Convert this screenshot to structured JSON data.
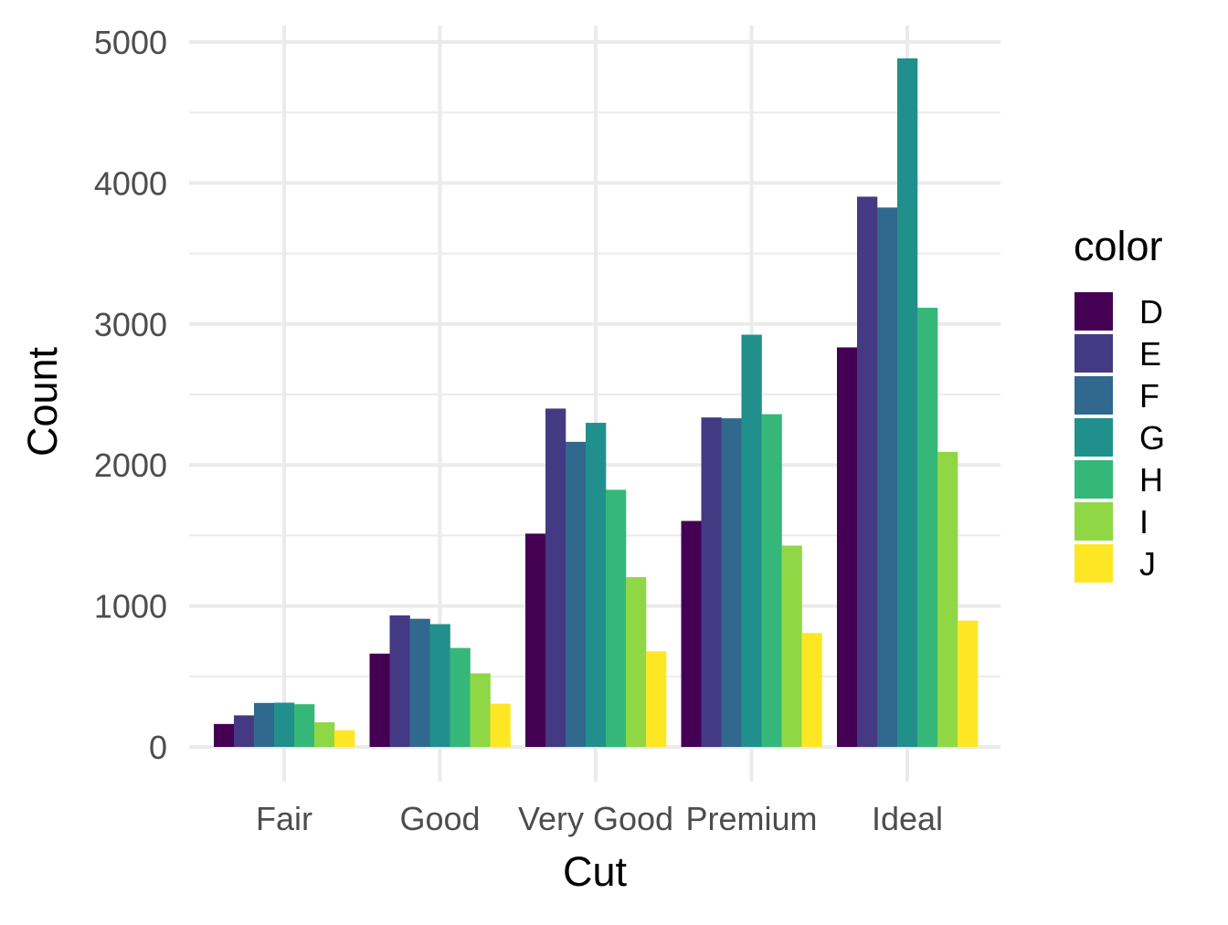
{
  "chart_data": {
    "type": "bar",
    "title": "",
    "xlabel": "Cut",
    "ylabel": "Count",
    "categories": [
      "Fair",
      "Good",
      "Very Good",
      "Premium",
      "Ideal"
    ],
    "ylim": [
      0,
      5000
    ],
    "y_ticks": [
      "0",
      "1000",
      "2000",
      "3000",
      "4000",
      "5000"
    ],
    "grid": true,
    "legend": {
      "title": "color",
      "position": "right"
    },
    "series": [
      {
        "name": "D",
        "color": "#440154",
        "values": [
          163,
          662,
          1513,
          1603,
          2834
        ]
      },
      {
        "name": "E",
        "color": "#443A83",
        "values": [
          224,
          933,
          2400,
          2337,
          3903
        ]
      },
      {
        "name": "F",
        "color": "#31688E",
        "values": [
          312,
          909,
          2164,
          2331,
          3826
        ]
      },
      {
        "name": "G",
        "color": "#21908C",
        "values": [
          314,
          871,
          2299,
          2924,
          4884
        ]
      },
      {
        "name": "H",
        "color": "#35B779",
        "values": [
          303,
          702,
          1824,
          2360,
          3115
        ]
      },
      {
        "name": "I",
        "color": "#8FD744",
        "values": [
          175,
          522,
          1204,
          1428,
          2093
        ]
      },
      {
        "name": "J",
        "color": "#FDE725",
        "values": [
          119,
          307,
          678,
          808,
          896
        ]
      }
    ]
  }
}
